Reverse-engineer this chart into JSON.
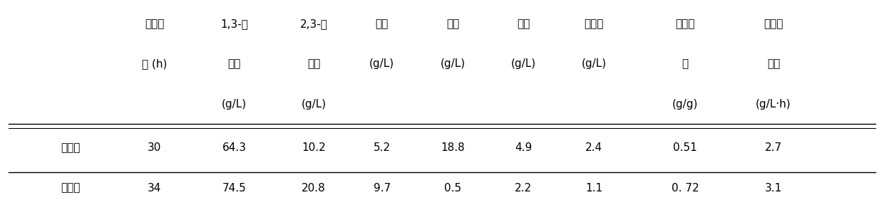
{
  "col_headers": [
    [
      "发酵周",
      "1,3-丙",
      "2,3-丁",
      "乙醇",
      "乳酸",
      "乙酸",
      "琥珀酸",
      "醇转化",
      "醇生产"
    ],
    [
      "期 (h)",
      "二醇",
      "二醇",
      "(g/L)",
      "(g/L)",
      "(g/L)",
      "(g/L)",
      "率",
      "强度"
    ],
    [
      "",
      "(g/L)",
      "(g/L)",
      "",
      "",
      "",
      "",
      "(g/g)",
      "(g/L·h)"
    ]
  ],
  "row_labels": [
    "对照组",
    "实验组"
  ],
  "rows": [
    [
      "30",
      "64.3",
      "10.2",
      "5.2",
      "18.8",
      "4.9",
      "2.4",
      "0.51",
      "2.7"
    ],
    [
      "34",
      "74.5",
      "20.8",
      "9.7",
      "0.5",
      "2.2",
      "1.1",
      "0. 72",
      "3.1"
    ]
  ],
  "background_color": "#ffffff",
  "text_color": "#000000",
  "font_size": 11,
  "header_font_size": 11
}
